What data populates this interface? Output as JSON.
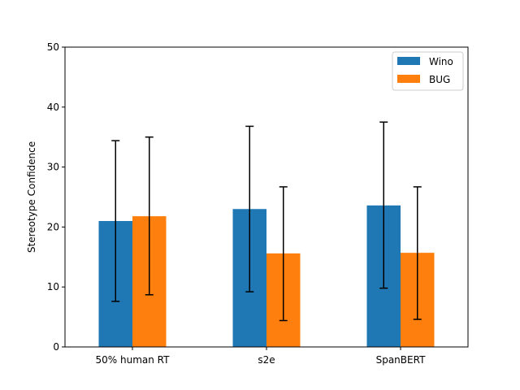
{
  "chart_data": {
    "type": "bar",
    "categories": [
      "50% human RT",
      "s2e",
      "SpanBERT"
    ],
    "series": [
      {
        "name": "Wino",
        "color": "#1f77b4",
        "values": [
          21.0,
          23.0,
          23.6
        ],
        "error_low": [
          7.6,
          9.2,
          9.8
        ],
        "error_high": [
          34.4,
          36.8,
          37.5
        ]
      },
      {
        "name": "BUG",
        "color": "#ff7f0e",
        "values": [
          21.8,
          15.6,
          15.7
        ],
        "error_low": [
          8.7,
          4.4,
          4.6
        ],
        "error_high": [
          35.0,
          26.7,
          26.7
        ]
      }
    ],
    "ylabel": "Stereotype Confidence",
    "xlabel": "",
    "title": "",
    "ylim": [
      0,
      50
    ],
    "yticks": [
      0,
      10,
      20,
      30,
      40,
      50
    ],
    "legend_position": "top-right",
    "grid": false
  }
}
